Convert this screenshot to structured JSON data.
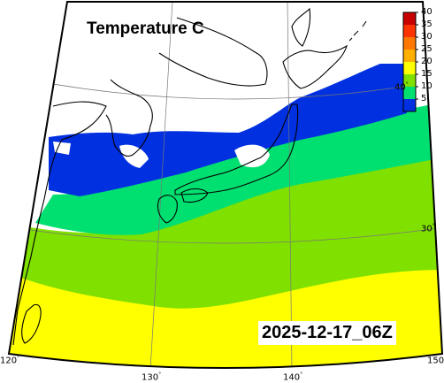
{
  "title": "Temperature C",
  "timestamp": "2025-12-17_06Z",
  "colorbar": {
    "ticks": [
      "40",
      "35",
      "30",
      "25",
      "20",
      "15",
      "10",
      "5"
    ],
    "colors": [
      "#c80000",
      "#ff3300",
      "#ff7700",
      "#ffb000",
      "#ffff00",
      "#80e000",
      "#00e070",
      "#0030e0"
    ]
  },
  "axes": {
    "lon_labels": [
      "120",
      "130",
      "140",
      "150"
    ],
    "lat_labels": [
      "40",
      "30"
    ]
  },
  "colors": {
    "no_data": "#ffffff",
    "band_5_10": "#0030e0",
    "band_10_15": "#00e070",
    "band_15_20": "#80e000",
    "band_20_25": "#ffff00",
    "coastline": "#000000"
  }
}
